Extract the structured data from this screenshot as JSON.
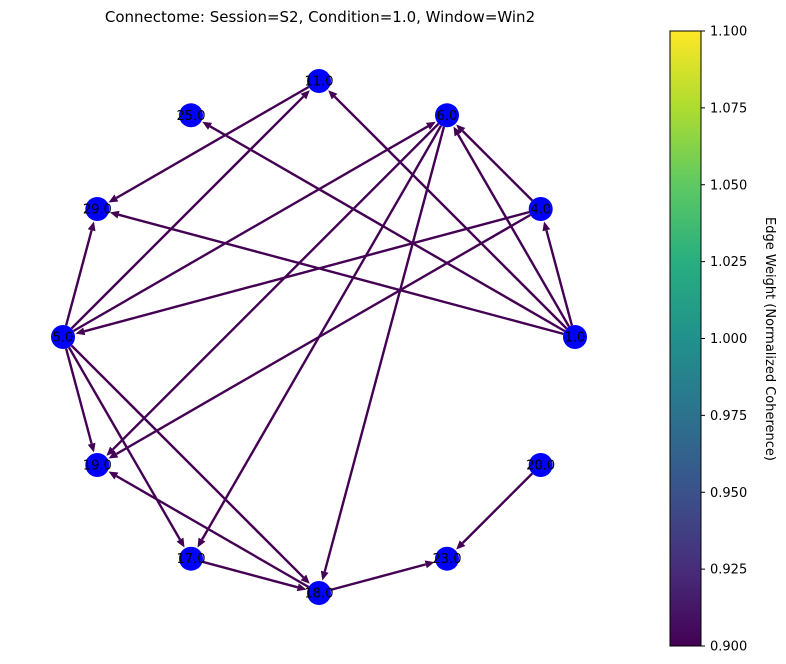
{
  "title": "Connectome: Session=S2, Condition=1.0, Window=Win2",
  "graph": {
    "node_color": "#0000ff",
    "edge_color": "#440154",
    "nodes": [
      {
        "id": "11.0"
      },
      {
        "id": "6.0"
      },
      {
        "id": "4.0"
      },
      {
        "id": "1.0"
      },
      {
        "id": "20.0"
      },
      {
        "id": "23.0"
      },
      {
        "id": "18.0"
      },
      {
        "id": "17.0"
      },
      {
        "id": "19.0"
      },
      {
        "id": "5.0"
      },
      {
        "id": "29.0"
      },
      {
        "id": "25.0"
      }
    ],
    "edges": [
      {
        "from": "5.0",
        "to": "11.0"
      },
      {
        "from": "5.0",
        "to": "6.0"
      },
      {
        "from": "5.0",
        "to": "29.0"
      },
      {
        "from": "5.0",
        "to": "19.0"
      },
      {
        "from": "5.0",
        "to": "17.0"
      },
      {
        "from": "5.0",
        "to": "18.0"
      },
      {
        "from": "11.0",
        "to": "29.0"
      },
      {
        "from": "6.0",
        "to": "19.0"
      },
      {
        "from": "6.0",
        "to": "17.0"
      },
      {
        "from": "6.0",
        "to": "18.0"
      },
      {
        "from": "4.0",
        "to": "6.0"
      },
      {
        "from": "4.0",
        "to": "5.0"
      },
      {
        "from": "4.0",
        "to": "19.0"
      },
      {
        "from": "1.0",
        "to": "4.0"
      },
      {
        "from": "1.0",
        "to": "6.0"
      },
      {
        "from": "1.0",
        "to": "11.0"
      },
      {
        "from": "1.0",
        "to": "25.0"
      },
      {
        "from": "1.0",
        "to": "29.0"
      },
      {
        "from": "18.0",
        "to": "19.0"
      },
      {
        "from": "18.0",
        "to": "23.0"
      },
      {
        "from": "17.0",
        "to": "18.0"
      },
      {
        "from": "20.0",
        "to": "23.0"
      }
    ]
  },
  "colorbar": {
    "label": "Edge Weight (Normalized Coherence)",
    "min": 0.9,
    "max": 1.1,
    "ticks": [
      "0.900",
      "0.925",
      "0.950",
      "0.975",
      "1.000",
      "1.025",
      "1.050",
      "1.075",
      "1.100"
    ],
    "colormap": "viridis"
  }
}
